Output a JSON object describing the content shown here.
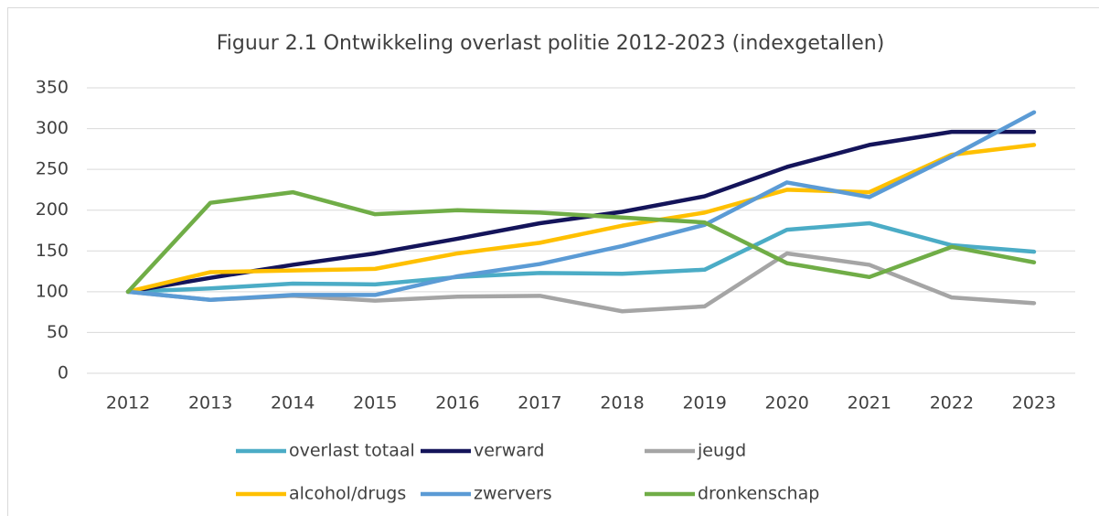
{
  "chart_data": {
    "type": "line",
    "title": "Figuur 2.1 Ontwikkeling overlast politie 2012-2023 (indexgetallen)",
    "categories": [
      "2012",
      "2013",
      "2014",
      "2015",
      "2016",
      "2017",
      "2018",
      "2019",
      "2020",
      "2021",
      "2022",
      "2023"
    ],
    "series": [
      {
        "name": "overlast totaal",
        "color": "#4bacc6",
        "values": [
          100,
          104,
          110,
          109,
          118,
          123,
          122,
          127,
          176,
          184,
          157,
          149
        ]
      },
      {
        "name": "verward",
        "color": "#14145a",
        "values": [
          100,
          117,
          133,
          147,
          165,
          184,
          198,
          217,
          253,
          280,
          296,
          296
        ]
      },
      {
        "name": "jeugd",
        "color": "#a5a5a5",
        "values": [
          100,
          90,
          95,
          89,
          94,
          95,
          76,
          82,
          147,
          133,
          93,
          86
        ]
      },
      {
        "name": "alcohol/drugs",
        "color": "#ffc000",
        "values": [
          100,
          124,
          126,
          128,
          147,
          160,
          181,
          197,
          225,
          222,
          268,
          280
        ]
      },
      {
        "name": "zwervers",
        "color": "#5b9bd5",
        "values": [
          100,
          90,
          96,
          96,
          119,
          134,
          156,
          182,
          234,
          216,
          266,
          320
        ]
      },
      {
        "name": "dronkenschap",
        "color": "#70ad47",
        "values": [
          100,
          209,
          222,
          195,
          200,
          197,
          191,
          185,
          135,
          118,
          155,
          136
        ]
      }
    ],
    "ylim": [
      0,
      350
    ],
    "yticks": [
      0,
      50,
      100,
      150,
      200,
      250,
      300,
      350
    ],
    "grid": true
  }
}
